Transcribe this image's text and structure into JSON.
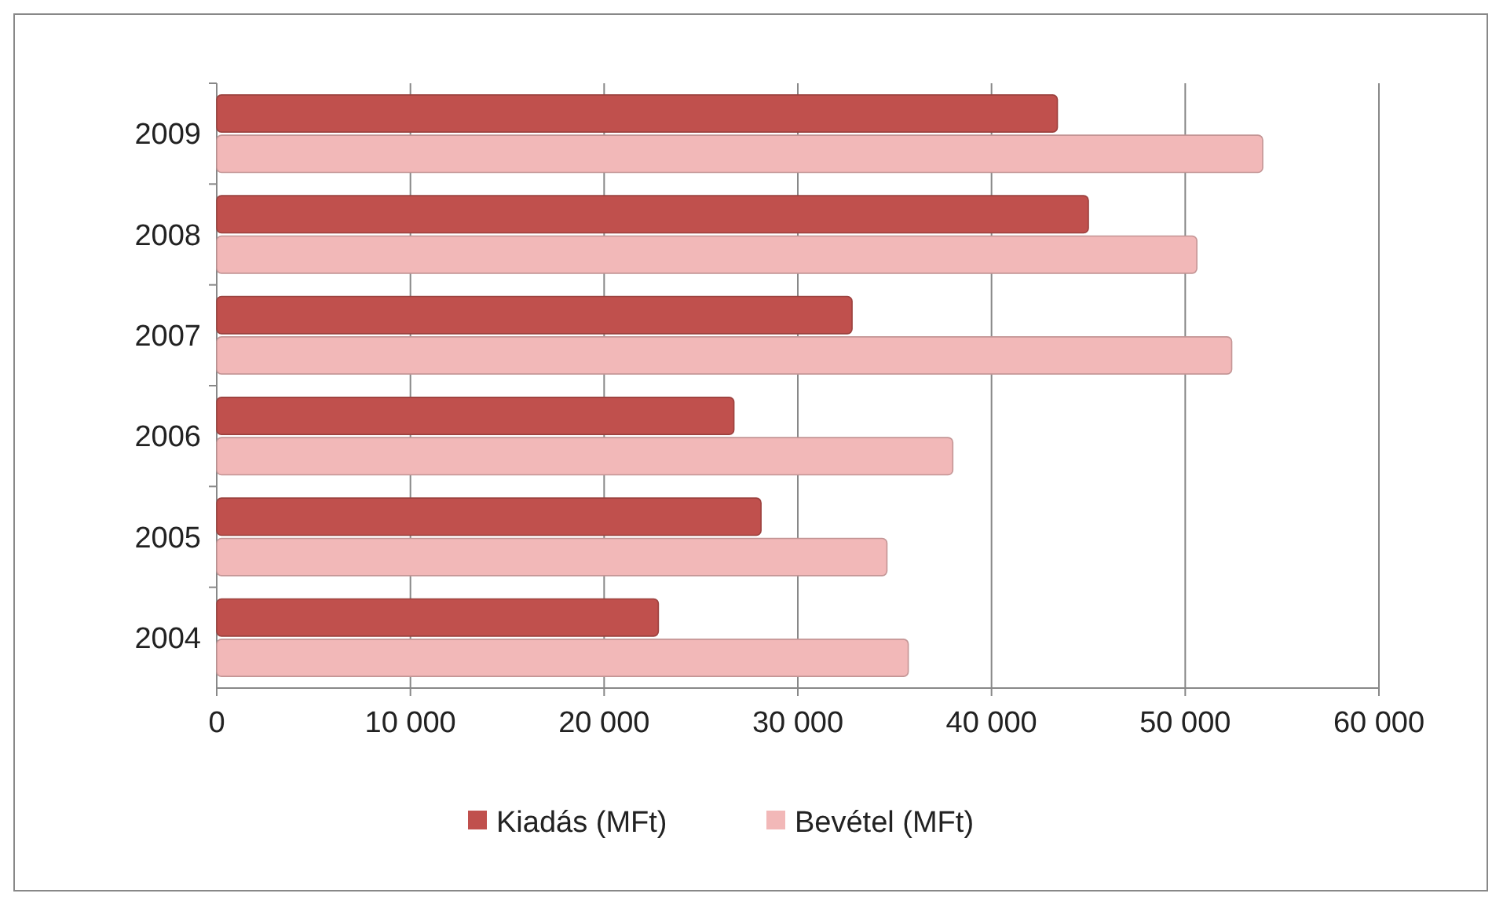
{
  "chart_data": {
    "type": "bar",
    "orientation": "horizontal",
    "categories": [
      "2009",
      "2008",
      "2007",
      "2006",
      "2005",
      "2004"
    ],
    "series": [
      {
        "name": "Kiadás (MFt)",
        "color": "#c0504d",
        "values": [
          43400,
          45000,
          32800,
          26700,
          28100,
          22800
        ]
      },
      {
        "name": "Bevétel (MFt)",
        "color": "#f2b8b8",
        "values": [
          54000,
          50600,
          52400,
          38000,
          34600,
          35700
        ]
      }
    ],
    "xlim": [
      0,
      60000
    ],
    "xticks": [
      0,
      {
        "value": 10000,
        "label": "10 000"
      },
      {
        "value": 20000,
        "label": "20 000"
      },
      {
        "value": 30000,
        "label": "30 000"
      },
      {
        "value": 40000,
        "label": "40 000"
      },
      {
        "value": 50000,
        "label": "50 000"
      },
      {
        "value": 60000,
        "label": "60 000"
      }
    ],
    "grid": "x",
    "legend": "bottom"
  }
}
